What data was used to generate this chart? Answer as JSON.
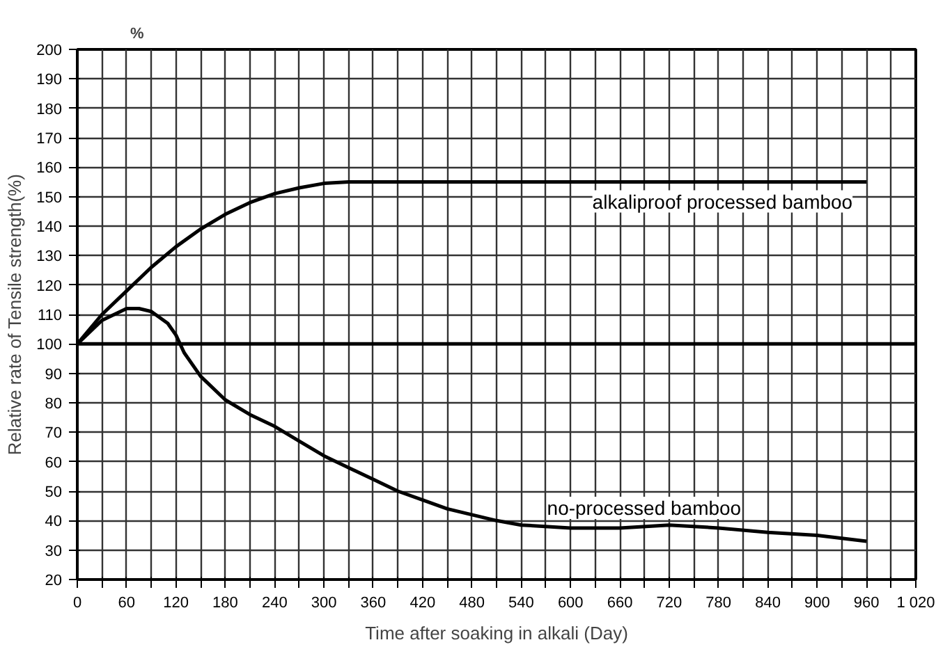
{
  "chart_data": {
    "type": "line",
    "xlabel": "Time after soaking in alkali (Day)",
    "ylabel": "Relative rate of Tensile strength(%)",
    "annotations": [
      "%"
    ],
    "xlim": [
      0,
      1020
    ],
    "ylim": [
      20,
      200
    ],
    "xticks": [
      0,
      {
        "value": 30,
        "label": null
      },
      60,
      {
        "value": 90,
        "label": null
      },
      120,
      {
        "value": 150,
        "label": null
      },
      180,
      {
        "value": 210,
        "label": null
      },
      240,
      {
        "value": 270,
        "label": null
      },
      300,
      {
        "value": 330,
        "label": null
      },
      360,
      {
        "value": 390,
        "label": null
      },
      420,
      {
        "value": 450,
        "label": null
      },
      480,
      {
        "value": 510,
        "label": null
      },
      540,
      {
        "value": 570,
        "label": null
      },
      600,
      {
        "value": 630,
        "label": null
      },
      660,
      {
        "value": 690,
        "label": null
      },
      720,
      {
        "value": 750,
        "label": null
      },
      780,
      {
        "value": 810,
        "label": null
      },
      840,
      {
        "value": 870,
        "label": null
      },
      900,
      {
        "value": 930,
        "label": null
      },
      960,
      {
        "value": 990,
        "label": null
      },
      {
        "value": 1020,
        "label": "1 020"
      }
    ],
    "yticks": [
      20,
      30,
      40,
      50,
      60,
      70,
      80,
      90,
      100,
      110,
      120,
      130,
      140,
      150,
      160,
      170,
      180,
      190,
      200
    ],
    "grid": true,
    "marker": "none",
    "line_style": "solid",
    "ref_lines": [
      {
        "axis": "y",
        "value": 100,
        "color": "#000000"
      }
    ],
    "series": [
      {
        "name": "alkaliproof processed bamboo",
        "color": "#000000",
        "x": [
          0,
          30,
          60,
          90,
          120,
          150,
          180,
          210,
          240,
          270,
          300,
          330,
          360,
          960
        ],
        "values": [
          100,
          110,
          118,
          126,
          133,
          139,
          144,
          148,
          151,
          153,
          154.5,
          155,
          155,
          155
        ]
      },
      {
        "name": "no-processed bamboo",
        "color": "#000000",
        "x": [
          0,
          30,
          60,
          75,
          90,
          110,
          120,
          130,
          150,
          180,
          210,
          240,
          270,
          300,
          330,
          360,
          390,
          420,
          450,
          480,
          510,
          540,
          600,
          660,
          720,
          780,
          840,
          900,
          960
        ],
        "values": [
          100,
          108,
          112,
          112,
          111,
          107,
          103,
          97,
          89,
          81,
          76,
          72,
          67,
          62,
          58,
          54,
          50,
          47,
          44,
          42,
          40,
          38.5,
          37.5,
          37.5,
          38.5,
          37.5,
          36,
          35,
          33
        ]
      }
    ]
  }
}
